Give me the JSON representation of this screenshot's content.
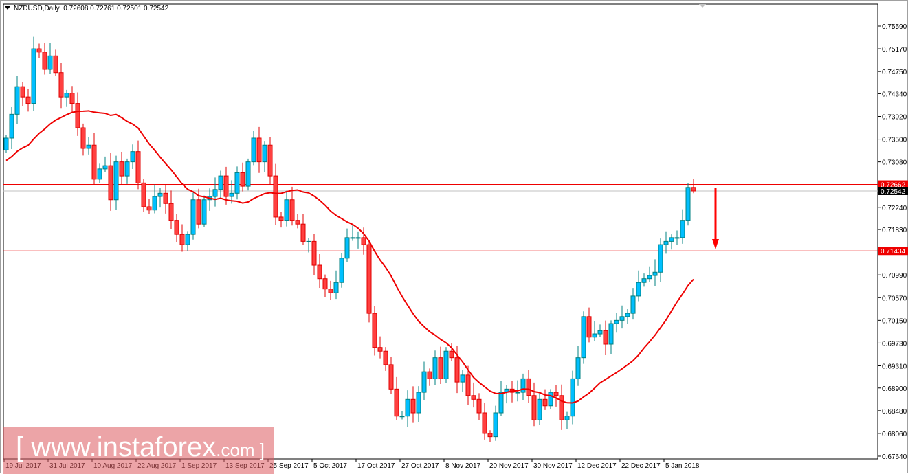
{
  "header": {
    "symbol": "NZDUSD,Daily",
    "ohlc": "0.72608 0.72761 0.72501 0.72542"
  },
  "watermark": {
    "text": "[  www.instaforex",
    "suffix": ".com ]"
  },
  "colors": {
    "bull_fill": "#00bfff",
    "bull_border": "#008080",
    "bear_fill": "#ff4040",
    "bear_border": "#e00000",
    "ma_line": "#ee0000",
    "level_line": "#ee0000",
    "price_line": "#c0c0c0",
    "arrow": "#ff0000"
  },
  "y_axis": {
    "min": 0.6764,
    "max": 0.7559,
    "ticks": [
      "0.75590",
      "0.75170",
      "0.74750",
      "0.74340",
      "0.73920",
      "0.73500",
      "0.73080",
      "0.72240",
      "0.71830",
      "0.70990",
      "0.70570",
      "0.70150",
      "0.69730",
      "0.69310",
      "0.68900",
      "0.68480",
      "0.68060",
      "0.67640"
    ]
  },
  "x_axis": {
    "ticks": [
      "19 Jul 2017",
      "31 Jul 2017",
      "10 Aug 2017",
      "22 Aug 2017",
      "1 Sep 2017",
      "13 Sep 2017",
      "25 Sep 2017",
      "5 Oct 2017",
      "17 Oct 2017",
      "27 Oct 2017",
      "8 Nov 2017",
      "20 Nov 2017",
      "30 Nov 2017",
      "12 Dec 2017",
      "22 Dec 2017",
      "5 Jan 2018"
    ]
  },
  "levels": [
    {
      "price": "0.72662",
      "kind": "resistance"
    },
    {
      "price": "0.71434",
      "kind": "support"
    }
  ],
  "current_price": "0.72542",
  "chart_data": {
    "type": "candlestick",
    "first_open": 0.733,
    "closes": [
      0.7352,
      0.7396,
      0.7447,
      0.7428,
      0.7416,
      0.7517,
      0.7511,
      0.7479,
      0.7504,
      0.7473,
      0.7428,
      0.7435,
      0.7416,
      0.7371,
      0.7333,
      0.7339,
      0.7276,
      0.7295,
      0.7301,
      0.7238,
      0.7308,
      0.7282,
      0.7308,
      0.7327,
      0.7269,
      0.7225,
      0.7219,
      0.7244,
      0.725,
      0.7231,
      0.72,
      0.7174,
      0.7155,
      0.7174,
      0.7238,
      0.7193,
      0.7238,
      0.7244,
      0.7257,
      0.7282,
      0.7244,
      0.725,
      0.7288,
      0.7263,
      0.7308,
      0.7352,
      0.7308,
      0.7339,
      0.7282,
      0.7206,
      0.72,
      0.7238,
      0.72,
      0.7193,
      0.7161,
      0.7161,
      0.7117,
      0.7092,
      0.7073,
      0.7066,
      0.7085,
      0.713,
      0.7168,
      0.7168,
      0.7168,
      0.7155,
      0.7028,
      0.6965,
      0.6958,
      0.6933,
      0.6888,
      0.6838,
      0.6838,
      0.6869,
      0.6844,
      0.6882,
      0.692,
      0.6907,
      0.6946,
      0.6907,
      0.6958,
      0.6946,
      0.6901,
      0.6914,
      0.6876,
      0.6869,
      0.6844,
      0.6806,
      0.68,
      0.6844,
      0.6882,
      0.6888,
      0.6882,
      0.6882,
      0.6907,
      0.6876,
      0.6831,
      0.6869,
      0.6857,
      0.6882,
      0.6876,
      0.6831,
      0.6838,
      0.6907,
      0.6946,
      0.7022,
      0.6984,
      0.699,
      0.6996,
      0.6971,
      0.7009,
      0.7015,
      0.7022,
      0.7028,
      0.706,
      0.7085,
      0.7092,
      0.7098,
      0.7104,
      0.7155,
      0.7161,
      0.7168,
      0.7168,
      0.72,
      0.72608,
      0.72542
    ],
    "last_candle": {
      "open": 0.72608,
      "high": 0.72761,
      "low": 0.72501,
      "close": 0.72542
    },
    "overlay": "moving average"
  }
}
